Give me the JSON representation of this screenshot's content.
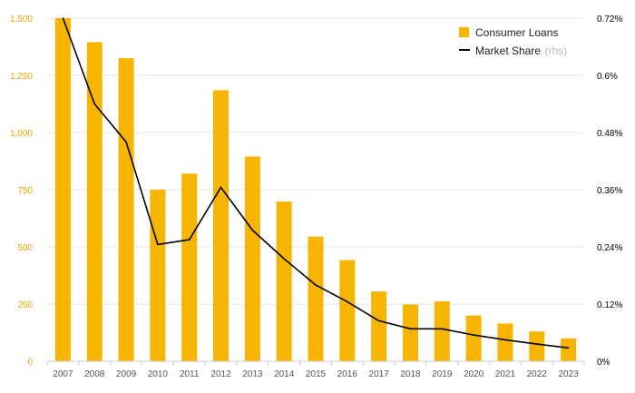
{
  "chart_data": {
    "type": "bar",
    "categories": [
      "2007",
      "2008",
      "2009",
      "2010",
      "2011",
      "2012",
      "2013",
      "2014",
      "2015",
      "2016",
      "2017",
      "2018",
      "2019",
      "2020",
      "2021",
      "2022",
      "2023"
    ],
    "series": [
      {
        "name": "Consumer Loans",
        "type": "bar",
        "axis": "left",
        "color": "#f7b400",
        "values": [
          1500,
          1395,
          1325,
          750,
          820,
          1185,
          895,
          698,
          545,
          442,
          305,
          248,
          262,
          200,
          165,
          130,
          100
        ]
      },
      {
        "name": "Market Share",
        "axis_note": "(rhs)",
        "type": "line",
        "axis": "right",
        "color": "#000000",
        "values": [
          0.72,
          0.54,
          0.46,
          0.245,
          0.255,
          0.365,
          0.275,
          0.215,
          0.16,
          0.125,
          0.085,
          0.068,
          0.068,
          0.055,
          0.045,
          0.036,
          0.028
        ]
      }
    ],
    "ylim_left": [
      0,
      1500
    ],
    "yticks_left": [
      0,
      250,
      500,
      750,
      1000,
      1250,
      1500
    ],
    "ytick_labels_left": [
      "0",
      "250",
      "500",
      "750",
      "1,000",
      "1,250",
      "1,500"
    ],
    "ylim_right": [
      0,
      0.72
    ],
    "yticks_right": [
      0,
      0.12,
      0.24,
      0.36,
      0.48,
      0.6,
      0.72
    ],
    "ytick_labels_right": [
      "0%",
      "0.12%",
      "0.24%",
      "0.36%",
      "0.48%",
      "0.6%",
      "0.72%"
    ],
    "legend_position": "top-right",
    "grid": true
  }
}
